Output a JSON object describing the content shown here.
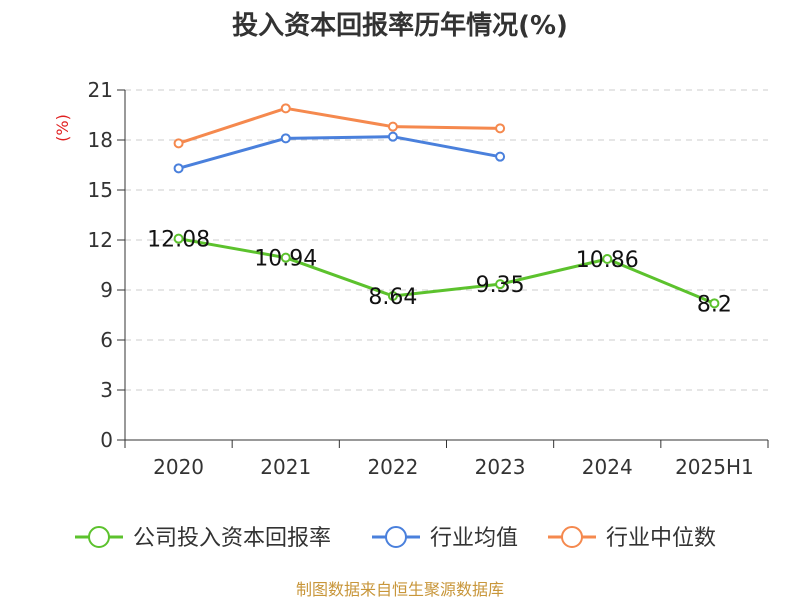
{
  "chart_data": {
    "type": "line",
    "title": "投入资本回报率历年情况(%)",
    "ylabel": "(%)",
    "categories": [
      "2020",
      "2021",
      "2022",
      "2023",
      "2024",
      "2025H1"
    ],
    "ylim": [
      0,
      21
    ],
    "yticks": [
      0,
      3,
      6,
      9,
      12,
      15,
      18,
      21
    ],
    "grid": true,
    "legend_position": "bottom",
    "series": [
      {
        "name": "公司投入资本回报率",
        "color": "#5cc22d",
        "values": [
          12.08,
          10.94,
          8.64,
          9.35,
          10.86,
          8.2
        ],
        "labels": [
          "12.08",
          "10.94",
          "8.64",
          "9.35",
          "10.86",
          "8.2"
        ]
      },
      {
        "name": "行业均值",
        "color": "#4a80dc",
        "values": [
          16.3,
          18.1,
          18.2,
          17.0,
          null,
          null
        ]
      },
      {
        "name": "行业中位数",
        "color": "#f5894e",
        "values": [
          17.8,
          19.9,
          18.8,
          18.7,
          null,
          null
        ]
      }
    ]
  },
  "source": "制图数据来自恒生聚源数据库"
}
